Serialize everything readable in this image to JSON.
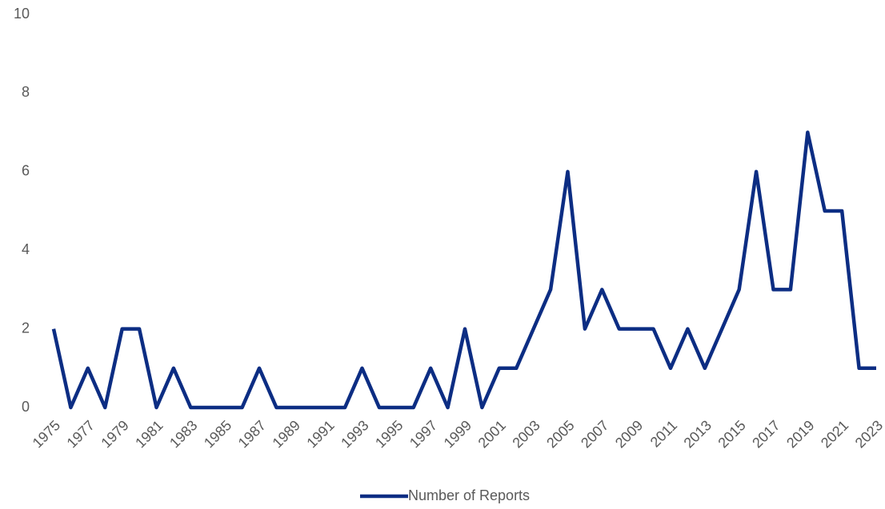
{
  "chart_data": {
    "type": "line",
    "x": [
      1975,
      1976,
      1977,
      1978,
      1979,
      1980,
      1981,
      1982,
      1983,
      1984,
      1985,
      1986,
      1987,
      1988,
      1989,
      1990,
      1991,
      1992,
      1993,
      1994,
      1995,
      1996,
      1997,
      1998,
      1999,
      2000,
      2001,
      2002,
      2003,
      2004,
      2005,
      2006,
      2007,
      2008,
      2009,
      2010,
      2011,
      2012,
      2013,
      2014,
      2015,
      2016,
      2017,
      2018,
      2019,
      2020,
      2021,
      2022,
      2023
    ],
    "series": [
      {
        "name": "Number of Reports",
        "color": "#0c2d83",
        "values": [
          2,
          0,
          1,
          0,
          2,
          2,
          0,
          1,
          0,
          0,
          0,
          0,
          1,
          0,
          0,
          0,
          0,
          0,
          1,
          0,
          0,
          0,
          1,
          0,
          2,
          0,
          1,
          1,
          2,
          3,
          6,
          2,
          3,
          2,
          2,
          2,
          1,
          2,
          1,
          2,
          3,
          6,
          3,
          3,
          7,
          5,
          5,
          1,
          1
        ]
      }
    ],
    "xlim": [
      1975,
      2023
    ],
    "xticks": [
      1975,
      1977,
      1979,
      1981,
      1983,
      1985,
      1987,
      1989,
      1991,
      1993,
      1995,
      1997,
      1999,
      2001,
      2003,
      2005,
      2007,
      2009,
      2011,
      2013,
      2015,
      2017,
      2019,
      2021,
      2023
    ],
    "ylim": [
      0,
      10
    ],
    "yticks": [
      0,
      2,
      4,
      6,
      8,
      10
    ],
    "grid": false,
    "legend": "bottom"
  }
}
